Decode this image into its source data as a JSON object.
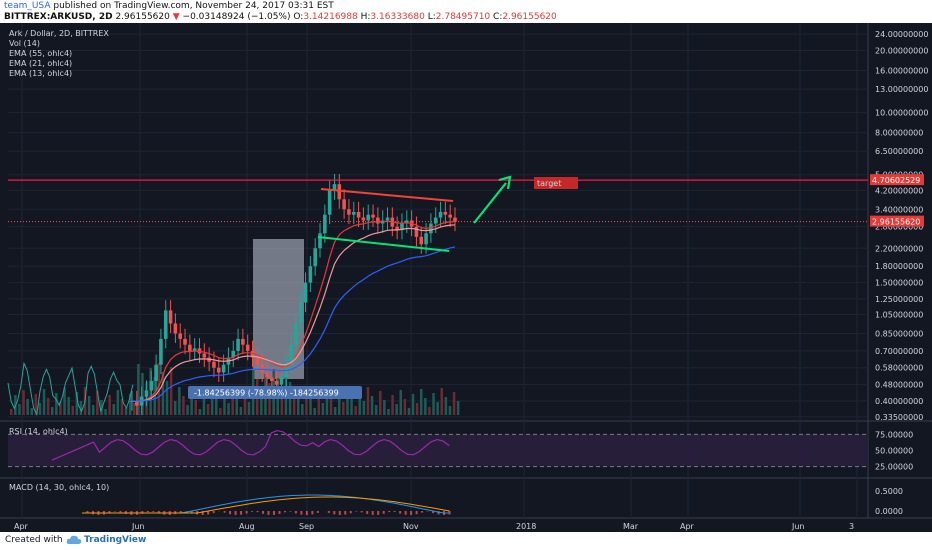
{
  "header": {
    "user": "team_USA",
    "published": "published on TradingView.com, November 24, 2017 03:31 EST",
    "symbol": "BITTREX:ARKUSD, 2D",
    "price": "2.96155620",
    "arrow": "▼",
    "change": "−0.03148924 (−1.05%)",
    "o_label": "O:",
    "o": "3.14216988",
    "h_label": "H:",
    "h": "3.16333680",
    "l_label": "L:",
    "l": "2.78495710",
    "c_label": "C:",
    "c": "2.96155620"
  },
  "legend": {
    "title": "Ark / Dollar, 2D, BITTREX",
    "vol": "Vol (14)",
    "ema1": "EMA (55, ohlc4)",
    "ema2": "EMA (21, ohlc4)",
    "ema3": "EMA (13, ohlc4)"
  },
  "panes": {
    "rsi_label": "RSI (14, ohlc4)",
    "macd_label": "MACD (14, 30, ohlc4, 10)"
  },
  "annotations": {
    "measure": "-1.84256399 (-78.98%) -184256399",
    "target": "target",
    "target_price": "4.70602529",
    "last_price": "2.96155620"
  },
  "footer": {
    "created": "Created with",
    "brand": "TradingView"
  },
  "colors": {
    "background": "#131722",
    "up": "#26a69a",
    "down": "#ef5350",
    "ema_blue": "#2962ff",
    "rsi": "#9c27b0",
    "target": "#ff1744",
    "support": "#00e676"
  },
  "chart_data": {
    "type": "candlestick",
    "y_scale": "log",
    "ylim": [
      0.32,
      26
    ],
    "price_ticks": [
      "24.00000000",
      "20.00000000",
      "16.00000000",
      "13.00000000",
      "10.00000000",
      "8.00000000",
      "6.50000000",
      "5.00000000",
      "4.20000000",
      "3.40000000",
      "2.80000000",
      "2.20000000",
      "1.80000000",
      "1.50000000",
      "1.25000000",
      "1.05000000",
      "0.85000000",
      "0.70000000",
      "0.58000000",
      "0.48000000",
      "0.40000000",
      "0.33500000"
    ],
    "x_ticks": [
      "Apr",
      "Jun",
      "Aug",
      "Sep",
      "Nov",
      "2018",
      "Mar",
      "Apr",
      "Jun",
      "3"
    ],
    "rsi_ticks": [
      "75.00000",
      "50.00000",
      "25.00000"
    ],
    "macd_ticks": [
      "0.5000",
      "0.0000"
    ],
    "series": [
      {
        "name": "Ark / Dollar",
        "values": [
          0.4,
          0.38,
          0.42,
          0.45,
          0.5,
          0.6,
          0.8,
          1.1,
          0.95,
          0.85,
          0.8,
          0.75,
          0.7,
          0.72,
          0.68,
          0.65,
          0.62,
          0.58,
          0.55,
          0.6,
          0.65,
          0.7,
          0.8,
          0.75,
          0.7,
          0.65,
          0.6,
          0.55,
          0.52,
          0.5,
          0.48,
          0.52,
          0.6,
          0.75,
          0.95,
          1.2,
          1.5,
          1.8,
          2.2,
          2.6,
          3.2,
          4.2,
          4.5,
          3.8,
          3.4,
          3.2,
          3.3,
          3.1,
          3.0,
          3.2,
          3.1,
          2.9,
          3.0,
          3.1,
          2.8,
          2.7,
          2.9,
          3.0,
          2.8,
          2.5,
          2.3,
          2.6,
          2.9,
          3.1,
          3.3,
          3.2,
          3.1,
          2.96
        ]
      }
    ],
    "target_level": 4.70602529,
    "last_price": 2.9615562
  }
}
